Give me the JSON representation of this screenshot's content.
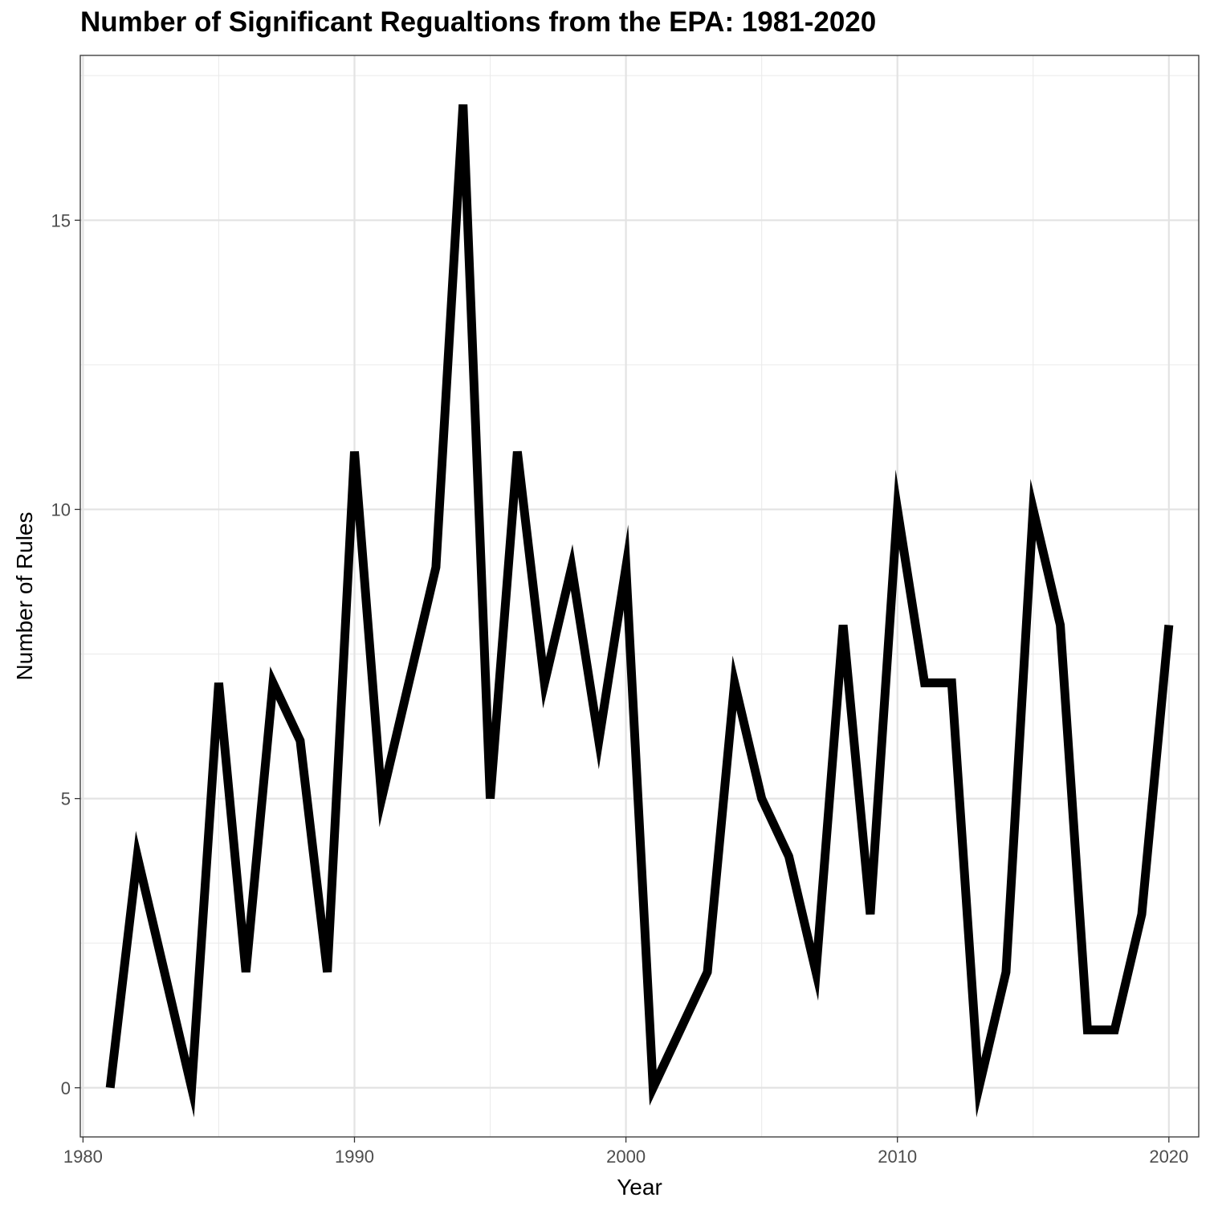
{
  "chart_data": {
    "type": "line",
    "title": "Number of Significant Regualtions from the EPA: 1981-2020",
    "xlabel": "Year",
    "ylabel": "Number of Rules",
    "xlim": [
      1979.9,
      2021.1
    ],
    "ylim": [
      -0.85,
      17.85
    ],
    "x_ticks": [
      1980,
      1990,
      2000,
      2010,
      2020
    ],
    "x_tick_labels": [
      "1980",
      "1990",
      "2000",
      "2010",
      "2020"
    ],
    "y_ticks": [
      0,
      5,
      10,
      15
    ],
    "y_tick_labels": [
      "0",
      "5",
      "10",
      "15"
    ],
    "grid": true,
    "legend": "none",
    "line_color": "#000000",
    "series": [
      {
        "x": [
          1981,
          1982,
          1983,
          1984,
          1985,
          1986,
          1987,
          1988,
          1989,
          1990,
          1991,
          1992,
          1993,
          1994,
          1995,
          1996,
          1997,
          1998,
          1999,
          2000,
          2001,
          2002,
          2003,
          2004,
          2005,
          2006,
          2007,
          2008,
          2009,
          2010,
          2011,
          2012,
          2013,
          2014,
          2015,
          2016,
          2017,
          2018,
          2019,
          2020
        ],
        "values": [
          0,
          4,
          2,
          0,
          7,
          2,
          7,
          6,
          2,
          11,
          5,
          7,
          9,
          17,
          5,
          11,
          7,
          9,
          6,
          9,
          0,
          1,
          2,
          7,
          5,
          4,
          2,
          8,
          3,
          10,
          7,
          7,
          0,
          2,
          10,
          8,
          1,
          1,
          3,
          8
        ]
      }
    ]
  }
}
